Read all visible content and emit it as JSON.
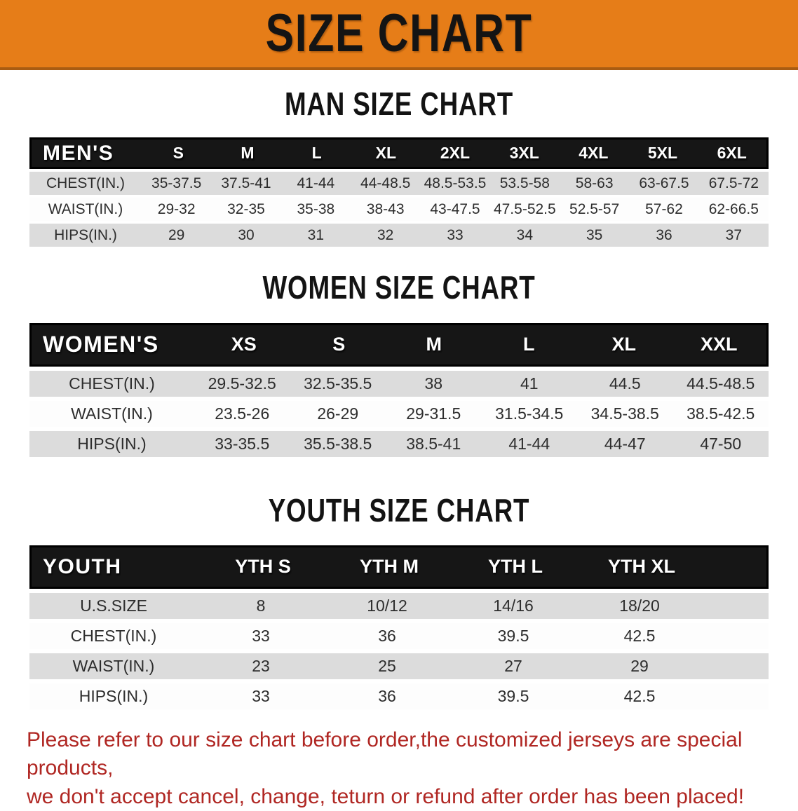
{
  "banner": {
    "title": "SIZE CHART"
  },
  "sections": [
    {
      "heading": "MAN SIZE CHART",
      "table": {
        "label": "MEN'S",
        "columns": [
          "S",
          "M",
          "L",
          "XL",
          "2XL",
          "3XL",
          "4XL",
          "5XL",
          "6XL"
        ],
        "rows": [
          {
            "label": "CHEST(IN.)",
            "values": [
              "35-37.5",
              "37.5-41",
              "41-44",
              "44-48.5",
              "48.5-53.5",
              "53.5-58",
              "58-63",
              "63-67.5",
              "67.5-72"
            ]
          },
          {
            "label": "WAIST(IN.)",
            "values": [
              "29-32",
              "32-35",
              "35-38",
              "38-43",
              "43-47.5",
              "47.5-52.5",
              "52.5-57",
              "57-62",
              "62-66.5"
            ]
          },
          {
            "label": "HIPS(IN.)",
            "values": [
              "29",
              "30",
              "31",
              "32",
              "33",
              "34",
              "35",
              "36",
              "37"
            ]
          }
        ]
      }
    },
    {
      "heading": "WOMEN SIZE CHART",
      "table": {
        "label": "WOMEN'S",
        "columns": [
          "XS",
          "S",
          "M",
          "L",
          "XL",
          "XXL"
        ],
        "rows": [
          {
            "label": "CHEST(IN.)",
            "values": [
              "29.5-32.5",
              "32.5-35.5",
              "38",
              "41",
              "44.5",
              "44.5-48.5"
            ]
          },
          {
            "label": "WAIST(IN.)",
            "values": [
              "23.5-26",
              "26-29",
              "29-31.5",
              "31.5-34.5",
              "34.5-38.5",
              "38.5-42.5"
            ]
          },
          {
            "label": "HIPS(IN.)",
            "values": [
              "33-35.5",
              "35.5-38.5",
              "38.5-41",
              "41-44",
              "44-47",
              "47-50"
            ]
          }
        ]
      }
    },
    {
      "heading": "YOUTH SIZE CHART",
      "table": {
        "label": "YOUTH",
        "columns": [
          "YTH S",
          "YTH M",
          "YTH L",
          "YTH XL"
        ],
        "rows": [
          {
            "label": "U.S.SIZE",
            "values": [
              "8",
              "10/12",
              "14/16",
              "18/20"
            ]
          },
          {
            "label": "CHEST(IN.)",
            "values": [
              "33",
              "36",
              "39.5",
              "42.5"
            ]
          },
          {
            "label": "WAIST(IN.)",
            "values": [
              "23",
              "25",
              "27",
              "29"
            ]
          },
          {
            "label": "HIPS(IN.)",
            "values": [
              "33",
              "36",
              "39.5",
              "42.5"
            ]
          }
        ]
      }
    }
  ],
  "footer": {
    "line1": "Please refer to our size chart before order,the customized jerseys are special products,",
    "line2": "we don't accept cancel, change, teturn or refund after order has been placed!"
  },
  "colors": {
    "banner_bg": "#e67d18",
    "banner_border": "#a95c12",
    "header_bar": "#161616",
    "stripe_gray": "#dcdcdc",
    "stripe_white": "#fdfdfd",
    "footer_text": "#b02723"
  }
}
